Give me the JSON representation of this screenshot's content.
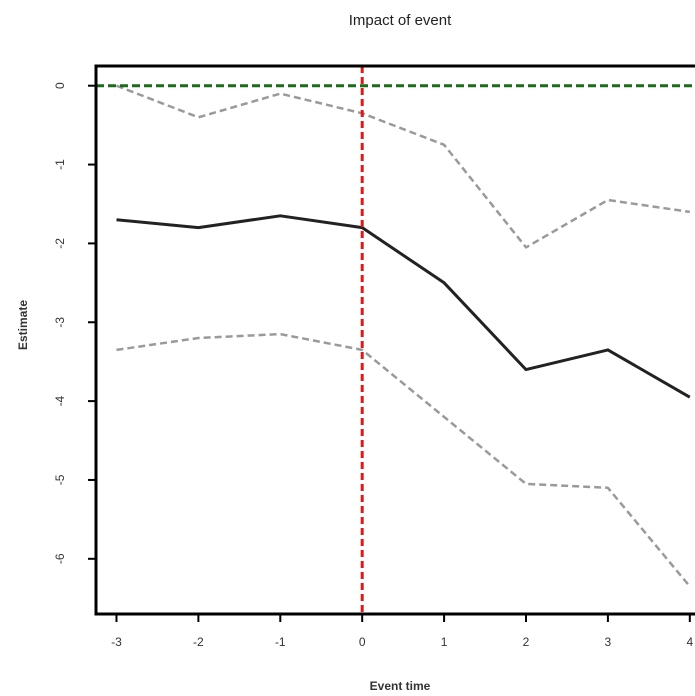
{
  "chart_data": {
    "type": "line",
    "title": "Impact of event",
    "xlabel": "Event time",
    "ylabel": "Estimate",
    "x": [
      -3,
      -2,
      -1,
      0,
      1,
      2,
      3,
      4
    ],
    "xlim": [
      -3.25,
      4.1
    ],
    "ylim": [
      -6.7,
      0.25
    ],
    "xticks": [
      -3,
      -2,
      -1,
      0,
      1,
      2,
      3,
      4
    ],
    "yticks": [
      0,
      -1,
      -2,
      -3,
      -4,
      -5,
      -6
    ],
    "series": [
      {
        "values": [
          -1.7,
          -1.8,
          -1.65,
          -1.8,
          -2.5,
          -3.6,
          -3.35,
          -3.95
        ],
        "style": "solid",
        "color": "#222222"
      },
      {
        "values": [
          0.0,
          -0.4,
          -0.1,
          -0.35,
          -0.75,
          -2.05,
          -1.45,
          -1.6
        ],
        "style": "dashed",
        "color": "#9a9a9a"
      },
      {
        "values": [
          -3.35,
          -3.2,
          -3.15,
          -3.35,
          -4.2,
          -5.05,
          -5.1,
          -6.35
        ],
        "style": "dashed",
        "color": "#9a9a9a"
      }
    ],
    "reference_lines": [
      {
        "axis": "y",
        "value": 0,
        "style": "dashed",
        "color": "#1a6b1a"
      },
      {
        "axis": "x",
        "value": 0,
        "style": "dashed",
        "color": "#e01818"
      }
    ],
    "grid": false,
    "legend": "none"
  }
}
